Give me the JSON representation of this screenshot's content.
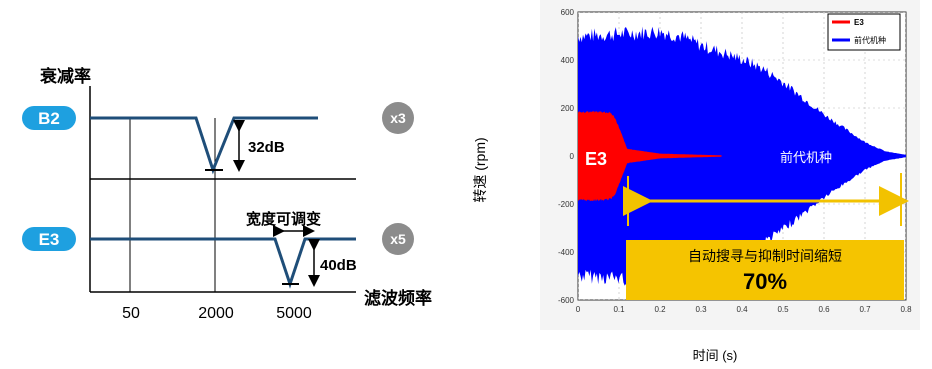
{
  "filter_diagram": {
    "y_axis_label": "衰减率",
    "x_axis_label": "滤波频率",
    "rows": [
      {
        "label": "B2",
        "multiplier": "x3",
        "depth": "32dB"
      },
      {
        "label": "E3",
        "multiplier": "x5",
        "depth": "40dB",
        "width_note": "宽度可调变"
      }
    ],
    "x_ticks": [
      "50",
      "2000",
      "5000"
    ],
    "colors": {
      "badge_blue": "#1ea0e0",
      "badge_gray": "#8c8c8c",
      "line": "#1f4e79"
    }
  },
  "chart_data": {
    "type": "area",
    "ylabel": "转速 (rpm)",
    "xlabel": "时间 (s)",
    "x_ticks": [
      "0",
      "0.1",
      "0.2",
      "0.3",
      "0.4",
      "0.5",
      "0.6",
      "0.7",
      "0.8"
    ],
    "y_ticks": [
      "600",
      "400",
      "200",
      "0",
      "-200",
      "-400",
      "-600"
    ],
    "xlim": [
      0,
      0.8
    ],
    "ylim": [
      -600,
      600
    ],
    "legend": {
      "position": "top-right",
      "entries": [
        "E3",
        "前代机种"
      ]
    },
    "series": [
      {
        "name": "前代机种",
        "color": "#0000ff",
        "x": [
          0.0,
          0.05,
          0.1,
          0.15,
          0.2,
          0.25,
          0.3,
          0.35,
          0.4,
          0.45,
          0.5,
          0.55,
          0.6,
          0.65,
          0.7,
          0.75,
          0.8
        ],
        "envelope": [
          520,
          525,
          530,
          535,
          540,
          520,
          480,
          450,
          420,
          380,
          320,
          250,
          180,
          120,
          60,
          20,
          5
        ]
      },
      {
        "name": "E3",
        "color": "#ff0000",
        "x": [
          0.0,
          0.03,
          0.06,
          0.08,
          0.09,
          0.1,
          0.12,
          0.2,
          0.3,
          0.35
        ],
        "envelope": [
          185,
          185,
          185,
          180,
          160,
          120,
          30,
          10,
          5,
          3
        ]
      }
    ],
    "annotations": {
      "e3_label": "E3",
      "prev_label": "前代机种",
      "reduction_text": "自动搜寻与抑制时间缩短",
      "reduction_value": "70%"
    },
    "colors": {
      "highlight": "#f5c400",
      "arrow": "#f2c200"
    }
  }
}
